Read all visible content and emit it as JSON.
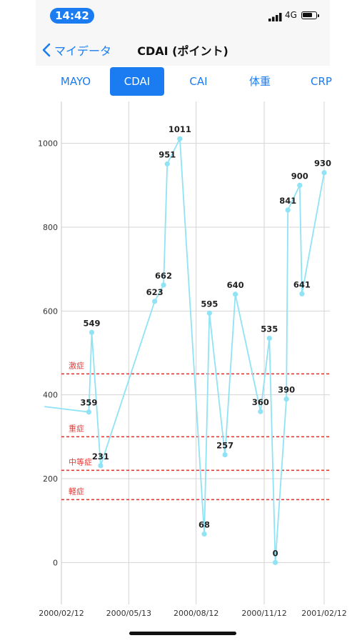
{
  "status_bar": {
    "time": "14:42",
    "network": "4G"
  },
  "nav": {
    "back_label": "マイデータ",
    "title": "CDAI (ポイント)"
  },
  "tabs": [
    {
      "label": "MAYO",
      "active": false
    },
    {
      "label": "CDAI",
      "active": true
    },
    {
      "label": "CAI",
      "active": false
    },
    {
      "label": "体重",
      "active": false
    },
    {
      "label": "CRP",
      "active": false
    }
  ],
  "colors": {
    "accent": "#1a7cf0",
    "line": "#8fe3f5",
    "threshold": "#e53935"
  },
  "chart_data": {
    "type": "line",
    "title": "",
    "xlabel": "",
    "ylabel": "",
    "ylim": [
      -100,
      1100
    ],
    "xlim": [
      "2000-02-12",
      "2001-02-01"
    ],
    "yticks": [
      0,
      200,
      400,
      600,
      800,
      1000
    ],
    "xticks": [
      {
        "date": "2000-02-12",
        "label": "2000/02/12"
      },
      {
        "date": "2000-05-13",
        "label": "2000/05/13"
      },
      {
        "date": "2000-08-12",
        "label": "2000/08/12"
      },
      {
        "date": "2000-11-12",
        "label": "2000/11/12"
      },
      {
        "date": "2001-02-12",
        "label": "2001/02/12"
      }
    ],
    "thresholds": [
      {
        "label": "激症",
        "value": 450
      },
      {
        "label": "重症",
        "value": 300
      },
      {
        "label": "中等症",
        "value": 220
      },
      {
        "label": "軽症",
        "value": 150
      }
    ],
    "grid": true,
    "series": [
      {
        "points": [
          {
            "x": "2000-01-20",
            "y": 372,
            "label": ""
          },
          {
            "x": "2000-03-20",
            "y": 359,
            "label": "359"
          },
          {
            "x": "2000-03-24",
            "y": 549,
            "label": "549"
          },
          {
            "x": "2000-04-05",
            "y": 231,
            "label": "231"
          },
          {
            "x": "2000-06-17",
            "y": 623,
            "label": "623"
          },
          {
            "x": "2000-06-29",
            "y": 662,
            "label": "662"
          },
          {
            "x": "2000-07-04",
            "y": 951,
            "label": "951"
          },
          {
            "x": "2000-07-21",
            "y": 1011,
            "label": "1011"
          },
          {
            "x": "2000-08-23",
            "y": 68,
            "label": "68"
          },
          {
            "x": "2000-08-30",
            "y": 595,
            "label": "595"
          },
          {
            "x": "2000-09-20",
            "y": 257,
            "label": "257"
          },
          {
            "x": "2000-10-04",
            "y": 640,
            "label": "640"
          },
          {
            "x": "2000-11-07",
            "y": 360,
            "label": "360"
          },
          {
            "x": "2000-11-19",
            "y": 535,
            "label": "535"
          },
          {
            "x": "2000-11-27",
            "y": 0,
            "label": "0"
          },
          {
            "x": "2000-12-12",
            "y": 390,
            "label": "390"
          },
          {
            "x": "2000-12-14",
            "y": 841,
            "label": "841"
          },
          {
            "x": "2000-12-30",
            "y": 900,
            "label": "900"
          },
          {
            "x": "2001-01-02",
            "y": 641,
            "label": "641"
          },
          {
            "x": "2001-02-01",
            "y": 930,
            "label": "930"
          }
        ]
      }
    ]
  }
}
